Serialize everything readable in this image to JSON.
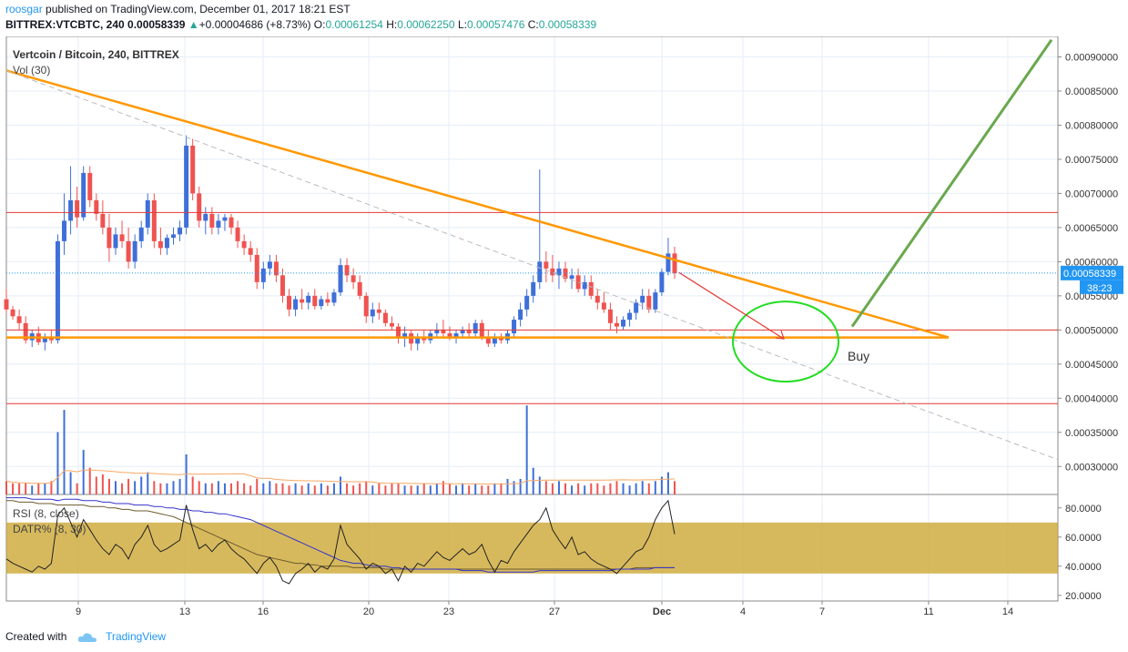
{
  "header": {
    "user": "roosgar",
    "published": "published on TradingView.com, December 01, 2017 18:21 EST",
    "symbol": "BITTREX:VTCBTC, 240",
    "price": "0.00058339",
    "change": "+0.00004686 (+8.73%)",
    "o_label": "O:",
    "o_value": "0.00061254",
    "h_label": "H:",
    "h_value": "0.00062250",
    "l_label": "L:",
    "l_value": "0.00057476",
    "c_label": "C:",
    "c_value": "0.00058339"
  },
  "legend": {
    "title": "Vertcoin / Bitcoin, 240, BITTREX",
    "volume": "Vol (30)",
    "rsi": "RSI (8, close)",
    "datr": "DATR% (8, 30)"
  },
  "annotations": {
    "buy": "Buy",
    "last_price": "0.00058339",
    "countdown": "38:23"
  },
  "footer": {
    "created_with": "Created with",
    "brand": "TradingView"
  },
  "colors": {
    "up": "#26a69a",
    "down": "#ef5350",
    "orange": "#ff9800",
    "green_line": "#6aa84f",
    "circle": "#22dd22",
    "red_line": "#e53935",
    "price_label": "#2196f3",
    "rsi_band": "#c9a227"
  },
  "chart_data": {
    "type": "candlestick",
    "x_ticks": [
      "9",
      "13",
      "16",
      "20",
      "23",
      "27",
      "Dec",
      "4",
      "7",
      "11",
      "14"
    ],
    "y_ticks": [
      "0.00090000",
      "0.00085000",
      "0.00080000",
      "0.00075000",
      "0.00070000",
      "0.00065000",
      "0.00060000",
      "0.00055000",
      "0.00050000",
      "0.00045000",
      "0.00040000",
      "0.00035000",
      "0.00030000"
    ],
    "ylim": [
      0.000263,
      0.00093
    ],
    "rsi_ticks": [
      "80.0000",
      "60.0000",
      "40.0000",
      "20.0000"
    ],
    "rsi_lim": [
      18,
      88
    ],
    "rsi_band": [
      35,
      70
    ],
    "horizontal_lines": [
      0.000672,
      0.0005,
      0.000392
    ],
    "support_line": 0.000489,
    "last_price": 0.00058339,
    "candles": [
      [
        0.000545,
        0.00056,
        0.000525,
        0.00053
      ],
      [
        0.00053,
        0.000535,
        0.000515,
        0.00052
      ],
      [
        0.00052,
        0.00053,
        0.0005,
        0.00051
      ],
      [
        0.00051,
        0.00052,
        0.00048,
        0.000485
      ],
      [
        0.000485,
        0.0005,
        0.000475,
        0.000495
      ],
      [
        0.000495,
        0.000505,
        0.000478,
        0.000482
      ],
      [
        0.000482,
        0.000495,
        0.00047,
        0.00049
      ],
      [
        0.00049,
        0.0005,
        0.00048,
        0.000485
      ],
      [
        0.000485,
        0.00064,
        0.00048,
        0.00063
      ],
      [
        0.00063,
        0.0007,
        0.00061,
        0.00066
      ],
      [
        0.00066,
        0.00074,
        0.00064,
        0.00069
      ],
      [
        0.00069,
        0.00071,
        0.00065,
        0.000665
      ],
      [
        0.000665,
        0.00074,
        0.00066,
        0.00073
      ],
      [
        0.00073,
        0.00074,
        0.00068,
        0.00069
      ],
      [
        0.00069,
        0.0007,
        0.00066,
        0.00067
      ],
      [
        0.00067,
        0.00069,
        0.00064,
        0.00065
      ],
      [
        0.00065,
        0.00067,
        0.0006,
        0.00062
      ],
      [
        0.00062,
        0.00065,
        0.00061,
        0.00064
      ],
      [
        0.00064,
        0.00066,
        0.00062,
        0.00063
      ],
      [
        0.00063,
        0.00065,
        0.00059,
        0.0006
      ],
      [
        0.0006,
        0.00064,
        0.00059,
        0.00063
      ],
      [
        0.00063,
        0.00066,
        0.00062,
        0.00065
      ],
      [
        0.00065,
        0.0007,
        0.00064,
        0.00069
      ],
      [
        0.00069,
        0.0007,
        0.00062,
        0.00063
      ],
      [
        0.00063,
        0.00065,
        0.00061,
        0.00062
      ],
      [
        0.00062,
        0.00064,
        0.00061,
        0.000635
      ],
      [
        0.000635,
        0.00065,
        0.000625,
        0.00064
      ],
      [
        0.00064,
        0.00066,
        0.00063,
        0.00065
      ],
      [
        0.00065,
        0.000785,
        0.00064,
        0.00077
      ],
      [
        0.00077,
        0.00078,
        0.00069,
        0.0007
      ],
      [
        0.0007,
        0.00071,
        0.00065,
        0.00066
      ],
      [
        0.00066,
        0.00068,
        0.00064,
        0.00067
      ],
      [
        0.00067,
        0.00068,
        0.00064,
        0.00065
      ],
      [
        0.00065,
        0.00067,
        0.00064,
        0.00066
      ],
      [
        0.00066,
        0.00067,
        0.000645,
        0.000665
      ],
      [
        0.000665,
        0.00067,
        0.00064,
        0.00065
      ],
      [
        0.00065,
        0.00066,
        0.00062,
        0.00063
      ],
      [
        0.00063,
        0.00064,
        0.00061,
        0.00062
      ],
      [
        0.00062,
        0.00063,
        0.0006,
        0.00061
      ],
      [
        0.00061,
        0.00062,
        0.00056,
        0.00057
      ],
      [
        0.00057,
        0.0006,
        0.00056,
        0.00059
      ],
      [
        0.00059,
        0.00061,
        0.00058,
        0.0006
      ],
      [
        0.0006,
        0.00061,
        0.00057,
        0.00058
      ],
      [
        0.00058,
        0.00059,
        0.00054,
        0.00055
      ],
      [
        0.00055,
        0.00056,
        0.00052,
        0.00053
      ],
      [
        0.00053,
        0.00055,
        0.00052,
        0.000545
      ],
      [
        0.000545,
        0.00056,
        0.00053,
        0.00054
      ],
      [
        0.00054,
        0.000555,
        0.00053,
        0.00055
      ],
      [
        0.00055,
        0.00056,
        0.00053,
        0.000535
      ],
      [
        0.000535,
        0.00055,
        0.00053,
        0.000545
      ],
      [
        0.000545,
        0.000555,
        0.000535,
        0.00054
      ],
      [
        0.00054,
        0.00056,
        0.000535,
        0.000555
      ],
      [
        0.000555,
        0.000605,
        0.00055,
        0.000595
      ],
      [
        0.000595,
        0.000605,
        0.00057,
        0.00058
      ],
      [
        0.00058,
        0.00059,
        0.00056,
        0.00057
      ],
      [
        0.00057,
        0.00058,
        0.000545,
        0.00055
      ],
      [
        0.00055,
        0.000555,
        0.00051,
        0.00052
      ],
      [
        0.00052,
        0.00054,
        0.00051,
        0.00053
      ],
      [
        0.00053,
        0.00054,
        0.000515,
        0.000525
      ],
      [
        0.000525,
        0.00053,
        0.000505,
        0.00051
      ],
      [
        0.00051,
        0.00052,
        0.0005,
        0.000505
      ],
      [
        0.000505,
        0.00051,
        0.00048,
        0.00049
      ],
      [
        0.00049,
        0.000505,
        0.000475,
        0.000495
      ],
      [
        0.000495,
        0.0005,
        0.00047,
        0.00048
      ],
      [
        0.00048,
        0.000495,
        0.00047,
        0.00049
      ],
      [
        0.00049,
        0.0005,
        0.00048,
        0.000485
      ],
      [
        0.000485,
        0.0005,
        0.00048,
        0.000495
      ],
      [
        0.000495,
        0.00051,
        0.00049,
        0.0005
      ],
      [
        0.0005,
        0.000515,
        0.00049,
        0.000495
      ],
      [
        0.000495,
        0.000505,
        0.000485,
        0.00049
      ],
      [
        0.00049,
        0.0005,
        0.00048,
        0.000495
      ],
      [
        0.000495,
        0.000505,
        0.00049,
        0.0005
      ],
      [
        0.0005,
        0.00051,
        0.00049,
        0.000495
      ],
      [
        0.000495,
        0.000515,
        0.00049,
        0.00051
      ],
      [
        0.00051,
        0.000515,
        0.000485,
        0.00049
      ],
      [
        0.00049,
        0.0005,
        0.000475,
        0.00048
      ],
      [
        0.00048,
        0.000495,
        0.000475,
        0.00049
      ],
      [
        0.00049,
        0.000495,
        0.00048,
        0.000485
      ],
      [
        0.000485,
        0.0005,
        0.00048,
        0.000495
      ],
      [
        0.000495,
        0.00052,
        0.00049,
        0.000515
      ],
      [
        0.000515,
        0.00054,
        0.000505,
        0.00053
      ],
      [
        0.00053,
        0.00056,
        0.00052,
        0.00055
      ],
      [
        0.00055,
        0.00058,
        0.00054,
        0.00057
      ],
      [
        0.00057,
        0.000735,
        0.00056,
        0.0006
      ],
      [
        0.0006,
        0.000615,
        0.00057,
        0.00059
      ],
      [
        0.00059,
        0.00061,
        0.00057,
        0.00058
      ],
      [
        0.00058,
        0.0006,
        0.00056,
        0.00059
      ],
      [
        0.00059,
        0.0006,
        0.00057,
        0.000575
      ],
      [
        0.000575,
        0.00059,
        0.00056,
        0.00058
      ],
      [
        0.00058,
        0.00059,
        0.000555,
        0.00056
      ],
      [
        0.00056,
        0.00058,
        0.00055,
        0.00057
      ],
      [
        0.00057,
        0.00058,
        0.000545,
        0.00055
      ],
      [
        0.00055,
        0.00056,
        0.00053,
        0.00054
      ],
      [
        0.00054,
        0.000555,
        0.000525,
        0.00053
      ],
      [
        0.00053,
        0.00054,
        0.0005,
        0.00051
      ],
      [
        0.00051,
        0.00052,
        0.000495,
        0.000505
      ],
      [
        0.000505,
        0.00052,
        0.0005,
        0.000515
      ],
      [
        0.000515,
        0.00053,
        0.000505,
        0.000525
      ],
      [
        0.000525,
        0.000545,
        0.000515,
        0.00054
      ],
      [
        0.00054,
        0.00056,
        0.00053,
        0.00055
      ],
      [
        0.00055,
        0.00056,
        0.000525,
        0.00053
      ],
      [
        0.00053,
        0.00056,
        0.000525,
        0.000555
      ],
      [
        0.000555,
        0.00059,
        0.00055,
        0.000585
      ],
      [
        0.000585,
        0.000635,
        0.00058,
        0.000612
      ],
      [
        0.000612,
        0.000622,
        0.000575,
        0.000583
      ]
    ],
    "volume": [
      6,
      5,
      5,
      5,
      4,
      5,
      5,
      6,
      28,
      38,
      10,
      5,
      20,
      12,
      8,
      9,
      7,
      6,
      5,
      7,
      6,
      8,
      10,
      6,
      5,
      5,
      6,
      7,
      18,
      8,
      6,
      5,
      5,
      6,
      5,
      5,
      6,
      5,
      4,
      7,
      5,
      6,
      5,
      5,
      4,
      5,
      4,
      5,
      4,
      5,
      4,
      5,
      8,
      5,
      4,
      5,
      6,
      4,
      5,
      4,
      5,
      5,
      4,
      4,
      4,
      5,
      4,
      5,
      6,
      5,
      4,
      5,
      4,
      5,
      4,
      4,
      5,
      5,
      7,
      6,
      7,
      40,
      12,
      8,
      6,
      5,
      6,
      5,
      4,
      5,
      4,
      5,
      5,
      4,
      5,
      6,
      5,
      4,
      5,
      6,
      5,
      6,
      8,
      10,
      6
    ],
    "rsi": [
      45,
      42,
      40,
      38,
      36,
      40,
      38,
      42,
      75,
      80,
      70,
      60,
      72,
      65,
      58,
      52,
      48,
      55,
      52,
      45,
      55,
      60,
      68,
      55,
      50,
      52,
      55,
      58,
      82,
      65,
      52,
      55,
      50,
      55,
      58,
      52,
      48,
      45,
      40,
      35,
      42,
      46,
      40,
      30,
      28,
      35,
      38,
      42,
      36,
      40,
      38,
      45,
      68,
      55,
      50,
      45,
      38,
      42,
      40,
      35,
      38,
      30,
      40,
      36,
      42,
      40,
      45,
      50,
      46,
      44,
      48,
      52,
      48,
      50,
      55,
      44,
      36,
      44,
      42,
      50,
      56,
      62,
      68,
      72,
      80,
      65,
      58,
      52,
      60,
      48,
      50,
      45,
      42,
      40,
      38,
      35,
      40,
      45,
      50,
      52,
      60,
      72,
      80,
      85,
      62
    ],
    "datr": [
      87,
      87,
      87,
      87,
      86,
      86,
      86,
      86,
      85,
      86,
      86,
      86,
      85,
      85,
      85,
      84,
      84,
      83,
      83,
      83,
      82,
      82,
      82,
      81,
      81,
      80,
      80,
      79,
      79,
      78,
      78,
      77,
      77,
      76,
      76,
      75,
      74,
      73,
      72,
      70,
      68,
      66,
      64,
      62,
      60,
      58,
      56,
      54,
      52,
      50,
      48,
      46,
      44,
      43,
      42,
      42,
      41,
      40,
      40,
      40,
      39,
      39,
      38,
      38,
      38,
      38,
      38,
      38,
      38,
      38,
      38,
      37,
      37,
      37,
      37,
      36,
      36,
      36,
      36,
      36,
      36,
      36,
      36,
      37,
      37,
      37,
      37,
      37,
      37,
      37,
      37,
      37,
      37,
      37,
      37,
      38,
      38,
      38,
      38,
      38,
      38,
      39,
      39,
      39,
      39
    ],
    "datr2": [
      85,
      85,
      84,
      84,
      84,
      83,
      83,
      83,
      82,
      82,
      82,
      82,
      82,
      81,
      81,
      81,
      80,
      80,
      79,
      79,
      78,
      78,
      78,
      77,
      76,
      75,
      74,
      72,
      70,
      68,
      66,
      64,
      62,
      60,
      58,
      56,
      54,
      52,
      50,
      48,
      47,
      46,
      45,
      44,
      43,
      42,
      42,
      41,
      41,
      40,
      40,
      40,
      40,
      40,
      39,
      39,
      39,
      39,
      39,
      38,
      38,
      38,
      38,
      38,
      38,
      38,
      38,
      38,
      38,
      38,
      38,
      38,
      38,
      38,
      38,
      38,
      38,
      38,
      38,
      38,
      38,
      38,
      38,
      38,
      38,
      38,
      38,
      38,
      38,
      38,
      38,
      38,
      38,
      38,
      38,
      38,
      38,
      38,
      39,
      39,
      39,
      39,
      39,
      39,
      39
    ]
  }
}
